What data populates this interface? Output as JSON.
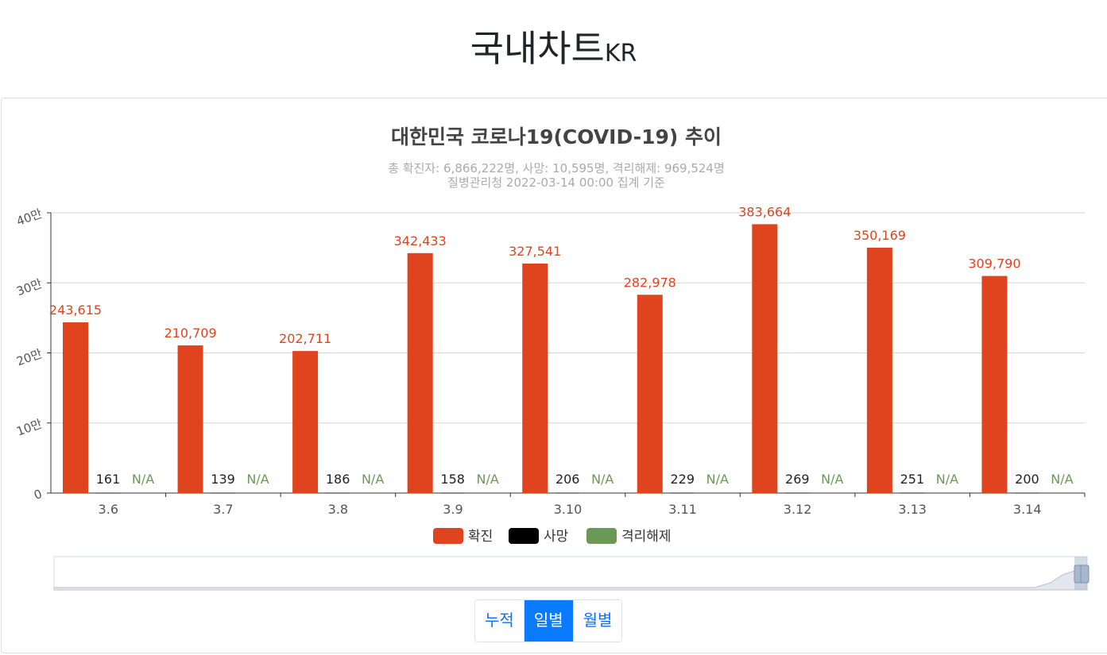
{
  "page": {
    "title": "국내차트",
    "title_suffix": "KR"
  },
  "chart_data": {
    "type": "bar",
    "title": "대한민국 코로나19(COVID-19) 추이",
    "subtitle_line1": "총 확진자: 6,866,222명, 사망: 10,595명, 격리해제: 969,524명",
    "subtitle_line2": "질병관리청 2022-03-14 00:00 집계 기준",
    "categories": [
      "3.6",
      "3.7",
      "3.8",
      "3.9",
      "3.10",
      "3.11",
      "3.12",
      "3.13",
      "3.14"
    ],
    "series": [
      {
        "name": "확진",
        "color": "#e0441e",
        "values": [
          243615,
          210709,
          202711,
          342433,
          327541,
          282978,
          383664,
          350169,
          309790
        ]
      },
      {
        "name": "사망",
        "color": "#000000",
        "values": [
          161,
          139,
          186,
          158,
          206,
          229,
          269,
          251,
          200
        ]
      },
      {
        "name": "격리해제",
        "color": "#6a9955",
        "values": [
          null,
          null,
          null,
          null,
          null,
          null,
          null,
          null,
          null
        ],
        "label_when_missing": "N/A"
      }
    ],
    "y_ticks": [
      "0",
      "10만",
      "20만",
      "30만",
      "40만"
    ],
    "ylim": [
      0,
      400000
    ],
    "grid": true,
    "legend_position": "bottom"
  },
  "buttons": [
    {
      "label": "누적",
      "active": false
    },
    {
      "label": "일별",
      "active": true
    },
    {
      "label": "월별",
      "active": false
    }
  ],
  "colors": {
    "confirmed": "#e0441e",
    "death": "#000000",
    "released": "#6a9955",
    "accent": "#0a7bff"
  }
}
